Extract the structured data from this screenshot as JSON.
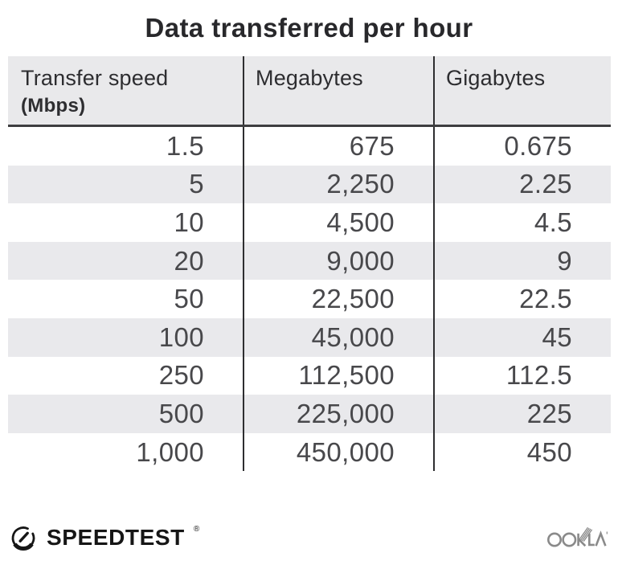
{
  "title": "Data transferred per hour",
  "table": {
    "columns": [
      {
        "label": "Transfer speed",
        "sublabel": "(Mbps)"
      },
      {
        "label": "Megabytes"
      },
      {
        "label": "Gigabytes"
      }
    ],
    "rows": [
      [
        "1.5",
        "675",
        "0.675"
      ],
      [
        "5",
        "2,250",
        "2.25"
      ],
      [
        "10",
        "4,500",
        "4.5"
      ],
      [
        "20",
        "9,000",
        "9"
      ],
      [
        "50",
        "22,500",
        "22.5"
      ],
      [
        "100",
        "45,000",
        "45"
      ],
      [
        "250",
        "112,500",
        "112.5"
      ],
      [
        "500",
        "225,000",
        "225"
      ],
      [
        "1,000",
        "450,000",
        "450"
      ]
    ]
  },
  "chart_data": {
    "type": "table",
    "title": "Data transferred per hour",
    "columns": [
      "Transfer speed (Mbps)",
      "Megabytes",
      "Gigabytes"
    ],
    "rows": [
      [
        1.5,
        675,
        0.675
      ],
      [
        5,
        2250,
        2.25
      ],
      [
        10,
        4500,
        4.5
      ],
      [
        20,
        9000,
        9
      ],
      [
        50,
        22500,
        22.5
      ],
      [
        100,
        45000,
        45
      ],
      [
        250,
        112500,
        112.5
      ],
      [
        500,
        225000,
        225
      ],
      [
        1000,
        450000,
        450
      ]
    ],
    "layout": {
      "striped_rows": true,
      "header_background": "#e9e9eb"
    }
  },
  "footer": {
    "speedtest_label": "SPEEDTEST",
    "speedtest_reg": "®",
    "ookla_label": "OOKLA"
  },
  "colors": {
    "header_bg": "#e9e9eb",
    "stripe_bg": "#e9e9ec",
    "divider": "#2e2e30",
    "header_underline": "#3e3e40",
    "title_text": "#28282b",
    "body_text": "#48484b",
    "speedtest_black": "#161616",
    "ookla_gray": "#8a8a8a"
  }
}
